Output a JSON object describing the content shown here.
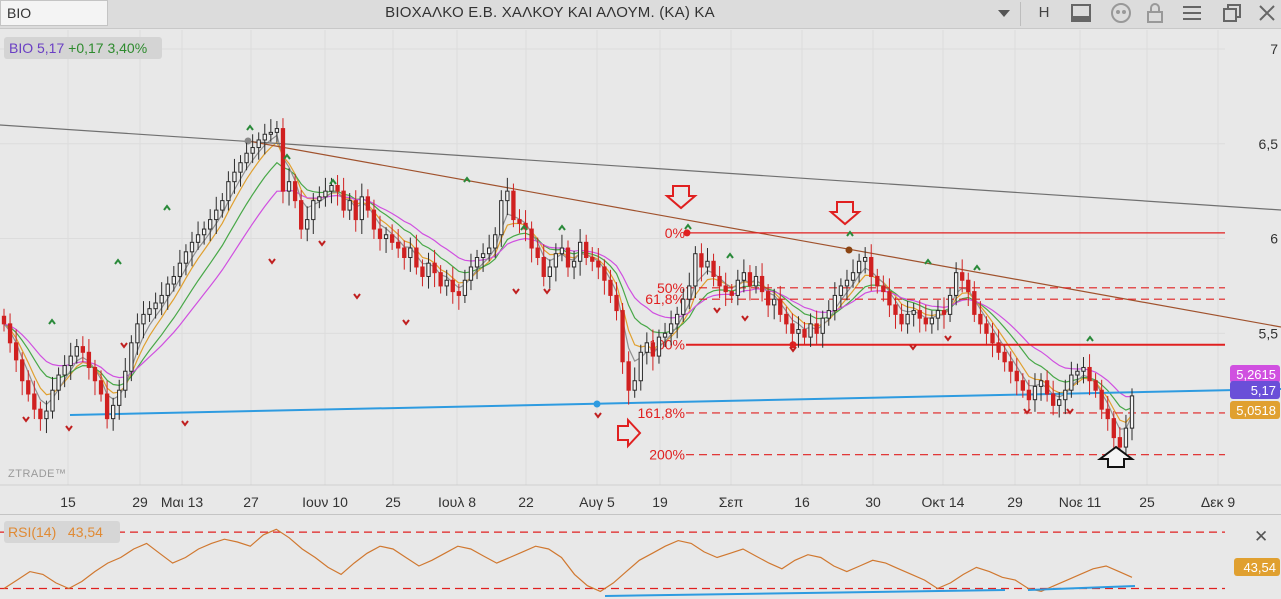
{
  "toolbar": {
    "symbol": "BIO",
    "title": "ΒΙΟΧΑΛΚΟ Ε.Β. ΧΑΛΚΟΥ  ΚΑΙ  ΑΛΟΥΜ. (ΚΑ) ΚΑ",
    "period": "H",
    "icons": [
      "dropdown-arrow-icon",
      "layout-icon",
      "comment-icon",
      "lock-icon",
      "menu-icon",
      "window-icon",
      "close-icon"
    ]
  },
  "price_badge": {
    "symbol_price": "BIO 5,17",
    "change": "+0,17 3,40%"
  },
  "watermark": "ZTRADE™",
  "rsi_badge": {
    "label": "RSI(14)",
    "value": "43,54"
  },
  "colors": {
    "up_candle": "#2b2b2b",
    "down_candle": "#d02020",
    "ma_magenta": "#d050e0",
    "ma_green": "#48a848",
    "ma_orange": "#e0a030",
    "ma_gray": "#909090",
    "trend_brown": "#a0522d",
    "trend_gray": "#707070",
    "support_blue": "#2e9be0",
    "fib_red": "#e02020",
    "rsi_line": "#d07830",
    "arrow_red": "#e02020"
  },
  "chart_data": [
    {
      "type": "line",
      "subtype": "candlestick",
      "ylim": [
        4.7,
        7.1
      ],
      "y_ticks": [
        "7",
        "6,5",
        "6",
        "5,5"
      ],
      "x_tick_labels": [
        "15",
        "29",
        "Μαι 13",
        "27",
        "Ιουν 10",
        "25",
        "Ιουλ 8",
        "22",
        "Αυγ 5",
        "19",
        "Σεπ",
        "16",
        "30",
        "Οκτ 14",
        "29",
        "Νοε 11",
        "25",
        "Δεκ 9"
      ],
      "last_close": "5,17",
      "price_labels": [
        {
          "value": "5,2615",
          "color": "#d050e0"
        },
        {
          "value": "5,17",
          "color": "#6a4fd8"
        },
        {
          "value": "5,0518",
          "color": "#e0a030"
        }
      ],
      "fibonacci": [
        {
          "label": "0%",
          "value": 6.03
        },
        {
          "label": "50%",
          "value": 5.74
        },
        {
          "label": "61,8%",
          "value": 5.68
        },
        {
          "label": "100%",
          "value": 5.44
        },
        {
          "label": "161,8%",
          "value": 5.08
        },
        {
          "label": "200%",
          "value": 4.86
        }
      ],
      "closes": [
        5.55,
        5.45,
        5.36,
        5.25,
        5.18,
        5.1,
        5.05,
        5.09,
        5.2,
        5.28,
        5.33,
        5.38,
        5.43,
        5.4,
        5.32,
        5.25,
        5.18,
        5.05,
        5.12,
        5.2,
        5.3,
        5.45,
        5.55,
        5.6,
        5.63,
        5.66,
        5.7,
        5.76,
        5.8,
        5.87,
        5.93,
        5.98,
        6.02,
        6.05,
        6.1,
        6.15,
        6.2,
        6.3,
        6.35,
        6.4,
        6.45,
        6.48,
        6.52,
        6.55,
        6.56,
        6.58,
        6.25,
        6.3,
        6.2,
        6.05,
        6.1,
        6.2,
        6.22,
        6.25,
        6.28,
        6.25,
        6.15,
        6.2,
        6.1,
        6.22,
        6.15,
        6.05,
        6.0,
        6.02,
        5.98,
        5.95,
        5.9,
        5.95,
        5.85,
        5.8,
        5.87,
        5.82,
        5.75,
        5.78,
        5.72,
        5.7,
        5.78,
        5.85,
        5.9,
        5.92,
        5.95,
        6.02,
        6.2,
        6.25,
        6.1,
        6.08,
        6.05,
        5.95,
        5.9,
        5.8,
        5.85,
        5.92,
        5.95,
        5.85,
        5.88,
        5.98,
        5.9,
        5.88,
        5.85,
        5.78,
        5.7,
        5.62,
        5.35,
        5.2,
        5.25,
        5.4,
        5.45,
        5.38,
        5.48,
        5.5,
        5.55,
        5.6,
        5.68,
        5.75,
        5.92,
        5.85,
        5.88,
        5.8,
        5.75,
        5.72,
        5.7,
        5.78,
        5.82,
        5.75,
        5.8,
        5.72,
        5.65,
        5.68,
        5.6,
        5.55,
        5.5,
        5.52,
        5.48,
        5.55,
        5.5,
        5.58,
        5.62,
        5.7,
        5.75,
        5.78,
        5.82,
        5.88,
        5.9,
        5.8,
        5.75,
        5.72,
        5.65,
        5.6,
        5.55,
        5.6,
        5.62,
        5.58,
        5.55,
        5.58,
        5.62,
        5.6,
        5.7,
        5.82,
        5.78,
        5.72,
        5.6,
        5.55,
        5.5,
        5.45,
        5.4,
        5.35,
        5.3,
        5.25,
        5.2,
        5.15,
        5.22,
        5.25,
        5.18,
        5.12,
        5.15,
        5.2,
        5.28,
        5.3,
        5.32,
        5.25,
        5.2,
        5.1,
        5.05,
        4.95,
        4.9,
        5.0,
        5.17
      ],
      "rsi_ylim": [
        24,
        80
      ],
      "rsi_levels": [
        70,
        30
      ],
      "rsi_value": "43,54",
      "rsi": [
        30,
        36,
        42,
        40,
        34,
        30,
        35,
        42,
        48,
        52,
        58,
        62,
        55,
        48,
        52,
        58,
        62,
        65,
        63,
        60,
        68,
        72,
        66,
        58,
        52,
        45,
        40,
        48,
        55,
        60,
        58,
        52,
        46,
        50,
        55,
        60,
        58,
        53,
        48,
        52,
        56,
        60,
        58,
        52,
        40,
        32,
        28,
        34,
        42,
        50,
        55,
        60,
        64,
        62,
        56,
        52,
        55,
        58,
        53,
        48,
        44,
        50,
        54,
        52,
        46,
        42,
        46,
        50,
        48,
        44,
        40,
        36,
        30,
        34,
        40,
        45,
        42,
        38,
        36,
        30,
        28,
        32,
        36,
        40,
        44,
        46,
        42,
        38
      ]
    }
  ]
}
